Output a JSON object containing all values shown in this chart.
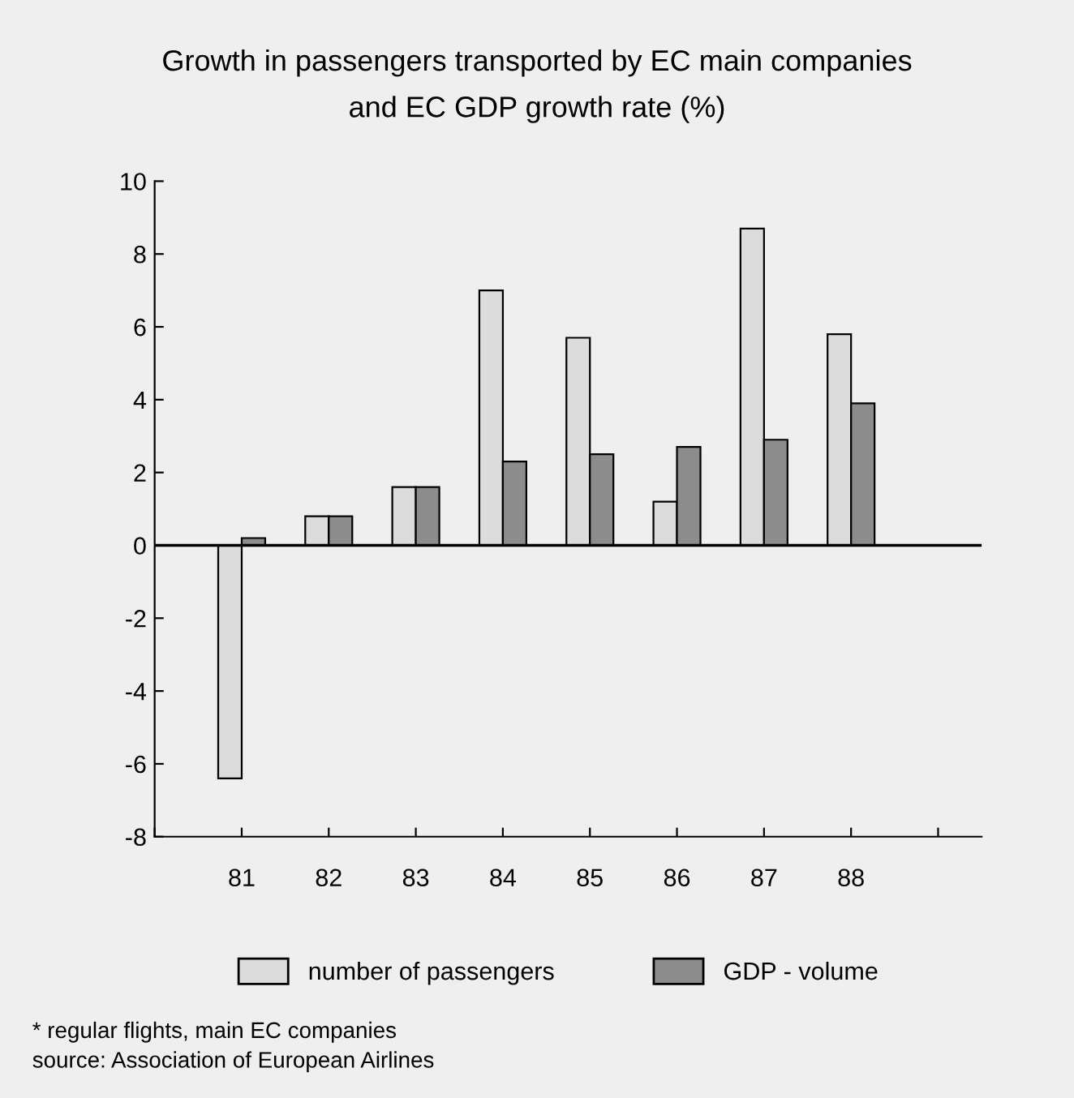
{
  "chart_data": {
    "type": "bar",
    "title": "Growth in passengers transported by EC main companies\nand EC GDP growth rate (%)",
    "categories": [
      null,
      "81",
      "82",
      "83",
      "84",
      "85",
      "86",
      "87",
      "88",
      null
    ],
    "series": [
      {
        "name": "number of passengers",
        "color": "#dcdcdc",
        "values": [
          null,
          -6.4,
          0.8,
          1.6,
          7.0,
          5.7,
          1.2,
          8.7,
          5.8,
          null
        ]
      },
      {
        "name": "GDP - volume",
        "color": "#8c8c8c",
        "values": [
          null,
          0.2,
          0.8,
          1.6,
          2.3,
          2.5,
          2.7,
          2.9,
          3.9,
          null
        ]
      }
    ],
    "ylim": [
      -8,
      10
    ],
    "yticks": [
      -8,
      -6,
      -4,
      -2,
      0,
      2,
      4,
      6,
      8,
      10
    ],
    "ref_lines": [
      {
        "axis": "y",
        "value": 0,
        "color": "#000000"
      }
    ],
    "grid": false,
    "legend": "bottom",
    "annotations": [
      "* regular flights, main EC companies",
      "source: Association of European Airlines"
    ]
  }
}
